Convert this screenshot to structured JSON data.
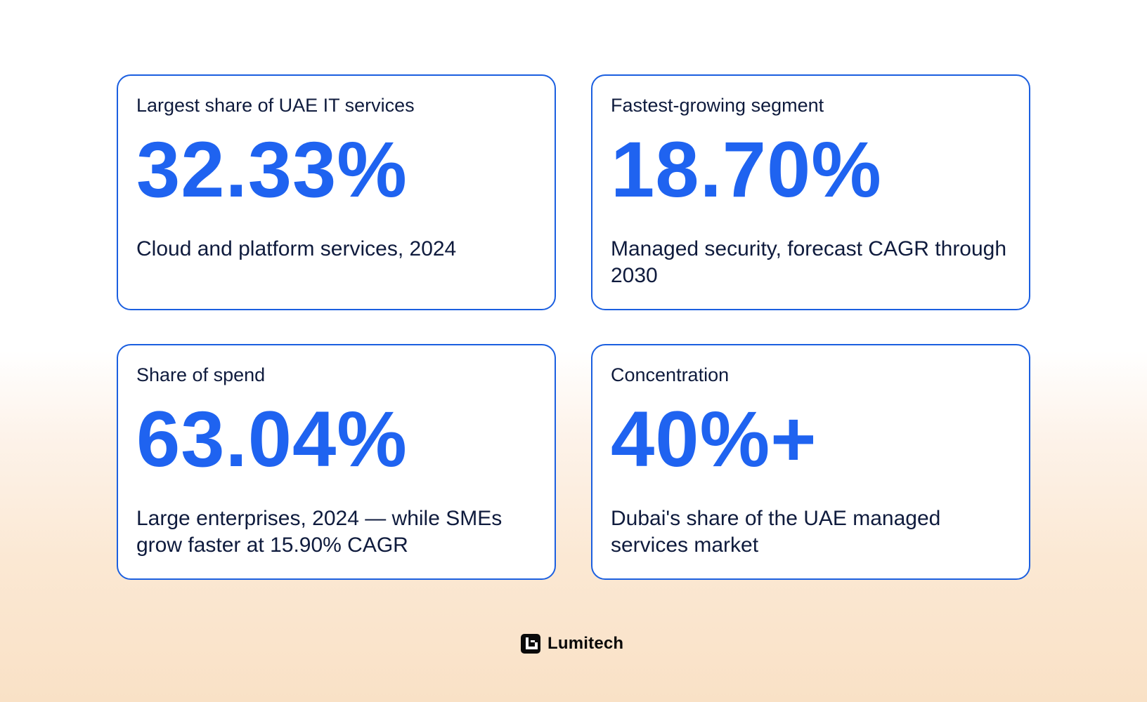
{
  "cards": [
    {
      "label": "Largest share of UAE IT services",
      "value": "32.33%",
      "description": "Cloud and platform services, 2024"
    },
    {
      "label": "Fastest-growing segment",
      "value": "18.70%",
      "description": "Managed security, forecast CAGR through 2030"
    },
    {
      "label": "Share of spend",
      "value": "63.04%",
      "description": "Large enterprises, 2024 — while SMEs grow faster at 15.90% CAGR"
    },
    {
      "label": "Concentration",
      "value": "40%+",
      "description": "Dubai's share of the UAE managed services market"
    }
  ],
  "brand": {
    "name": "Lumitech",
    "logo_icon": "lumitech-logo-icon"
  },
  "colors": {
    "accent": "#1f63f0",
    "border": "#1b5fe0",
    "text": "#0f1b3d"
  }
}
